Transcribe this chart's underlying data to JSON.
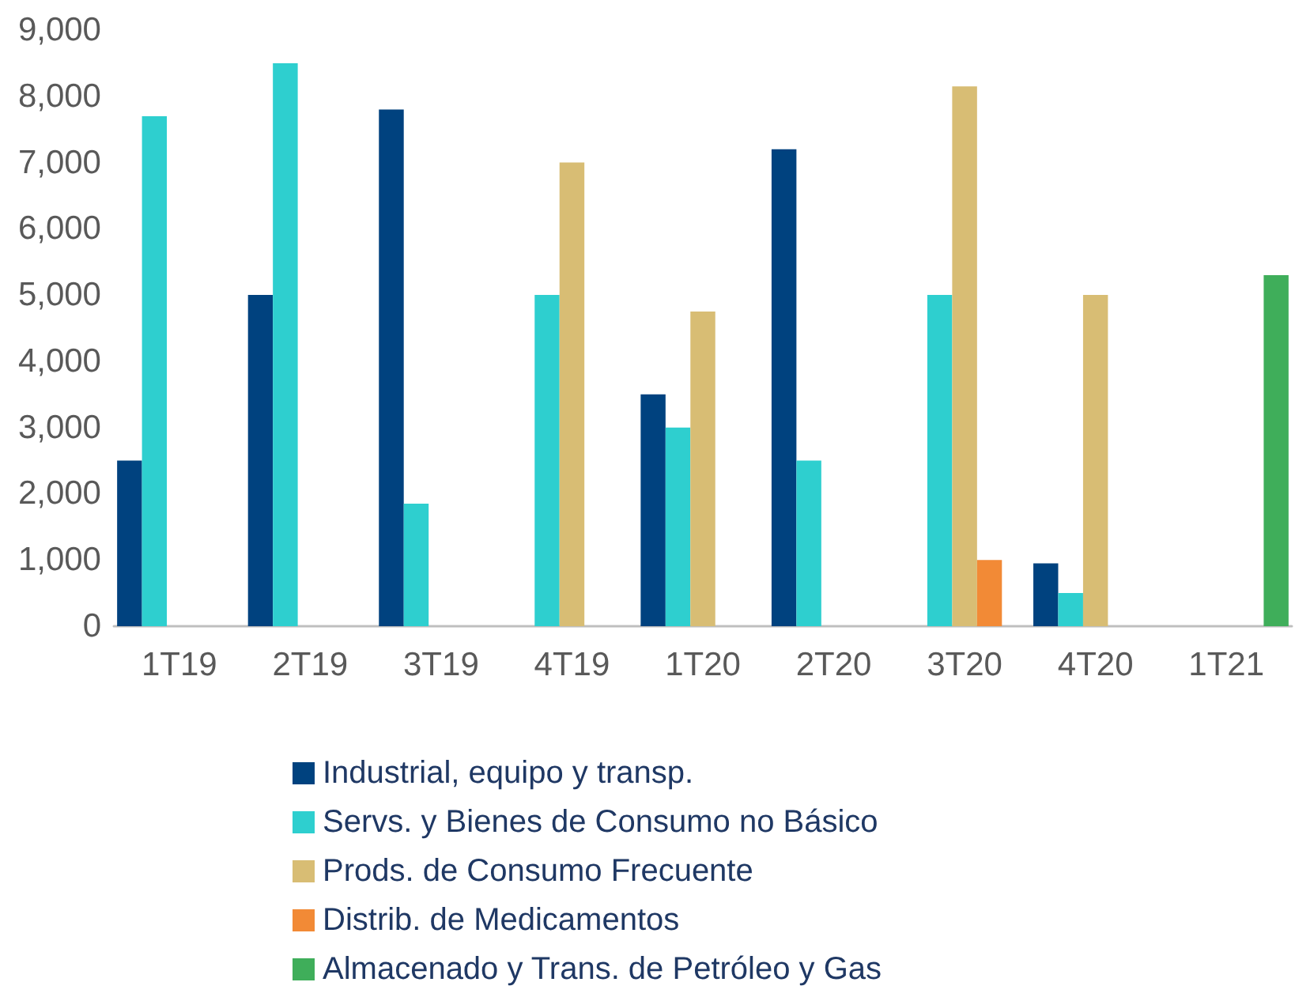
{
  "chart_data": {
    "type": "bar",
    "categories": [
      "1T19",
      "2T19",
      "3T19",
      "4T19",
      "1T20",
      "2T20",
      "3T20",
      "4T20",
      "1T21"
    ],
    "series": [
      {
        "name": "Industrial, equipo y transp.",
        "color": "#00427f",
        "values": [
          2500,
          5000,
          7800,
          null,
          3500,
          7200,
          null,
          950,
          null
        ]
      },
      {
        "name": "Servs. y Bienes de Consumo no Básico",
        "color": "#2ecfcf",
        "values": [
          7700,
          8500,
          1850,
          5000,
          3000,
          2500,
          5000,
          500,
          null
        ]
      },
      {
        "name": "Prods. de Consumo Frecuente",
        "color": "#d8bd74",
        "values": [
          null,
          null,
          null,
          7000,
          4750,
          null,
          8150,
          5000,
          null
        ]
      },
      {
        "name": "Distrib. de Medicamentos",
        "color": "#f28a36",
        "values": [
          null,
          null,
          null,
          null,
          null,
          null,
          1000,
          null,
          null
        ]
      },
      {
        "name": "Almacenado y Trans. de Petróleo y Gas",
        "color": "#3fae5a",
        "values": [
          null,
          null,
          null,
          null,
          null,
          null,
          null,
          null,
          5300
        ]
      }
    ],
    "ylim": [
      0,
      9000
    ],
    "yticks": [
      0,
      {
        "value": 1000,
        "label": "1,000"
      },
      {
        "value": 2000,
        "label": "2,000"
      },
      {
        "value": 3000,
        "label": "3,000"
      },
      {
        "value": 4000,
        "label": "4,000"
      },
      {
        "value": 5000,
        "label": "5,000"
      },
      {
        "value": 6000,
        "label": "6,000"
      },
      {
        "value": 7000,
        "label": "7,000"
      },
      {
        "value": 8000,
        "label": "8,000"
      },
      {
        "value": 9000,
        "label": "9,000"
      }
    ],
    "grid": false,
    "legend": "bottom"
  }
}
